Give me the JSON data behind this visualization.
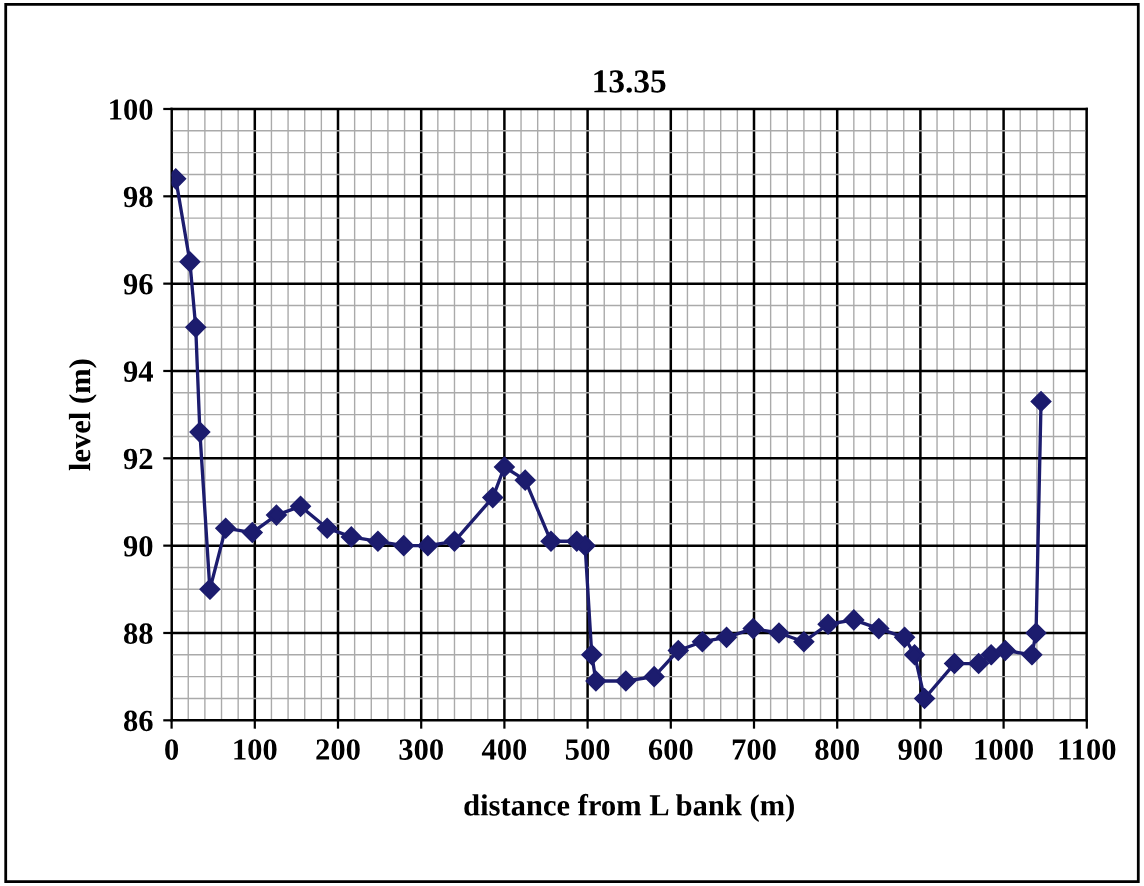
{
  "chart_data": {
    "type": "line",
    "title": "13.35",
    "xlabel": "distance from L bank (m)",
    "ylabel": "level (m)",
    "x": [
      5,
      22,
      29,
      34,
      46,
      65,
      97,
      126,
      155,
      187,
      216,
      248,
      279,
      308,
      340,
      386,
      400,
      425,
      456,
      487,
      497,
      505,
      510,
      546,
      580,
      609,
      638,
      667,
      699,
      730,
      760,
      789,
      820,
      850,
      881,
      893,
      905,
      941,
      970,
      985,
      1002,
      1034,
      1039,
      1045
    ],
    "series": [
      {
        "color": "#1c1c6e",
        "values": [
          98.4,
          96.5,
          95.0,
          92.6,
          89.0,
          90.4,
          90.3,
          90.7,
          90.9,
          90.4,
          90.2,
          90.1,
          90.0,
          90.0,
          90.1,
          91.1,
          91.8,
          91.5,
          90.1,
          90.1,
          90.0,
          87.5,
          86.9,
          86.9,
          87.0,
          87.6,
          87.8,
          87.9,
          88.1,
          88.0,
          87.8,
          88.2,
          88.3,
          88.1,
          87.9,
          87.5,
          86.5,
          87.3,
          87.3,
          87.5,
          87.6,
          87.5,
          88.0,
          93.3
        ]
      }
    ],
    "xlim": [
      0,
      1100
    ],
    "xticks": [
      0,
      100,
      200,
      300,
      400,
      500,
      600,
      700,
      800,
      900,
      1000,
      1100
    ],
    "ylim": [
      86,
      100
    ],
    "yticks": [
      86,
      88,
      90,
      92,
      94,
      96,
      98,
      100
    ],
    "grid": true,
    "marker": "diamond",
    "line_style": "solid",
    "legend": false
  }
}
